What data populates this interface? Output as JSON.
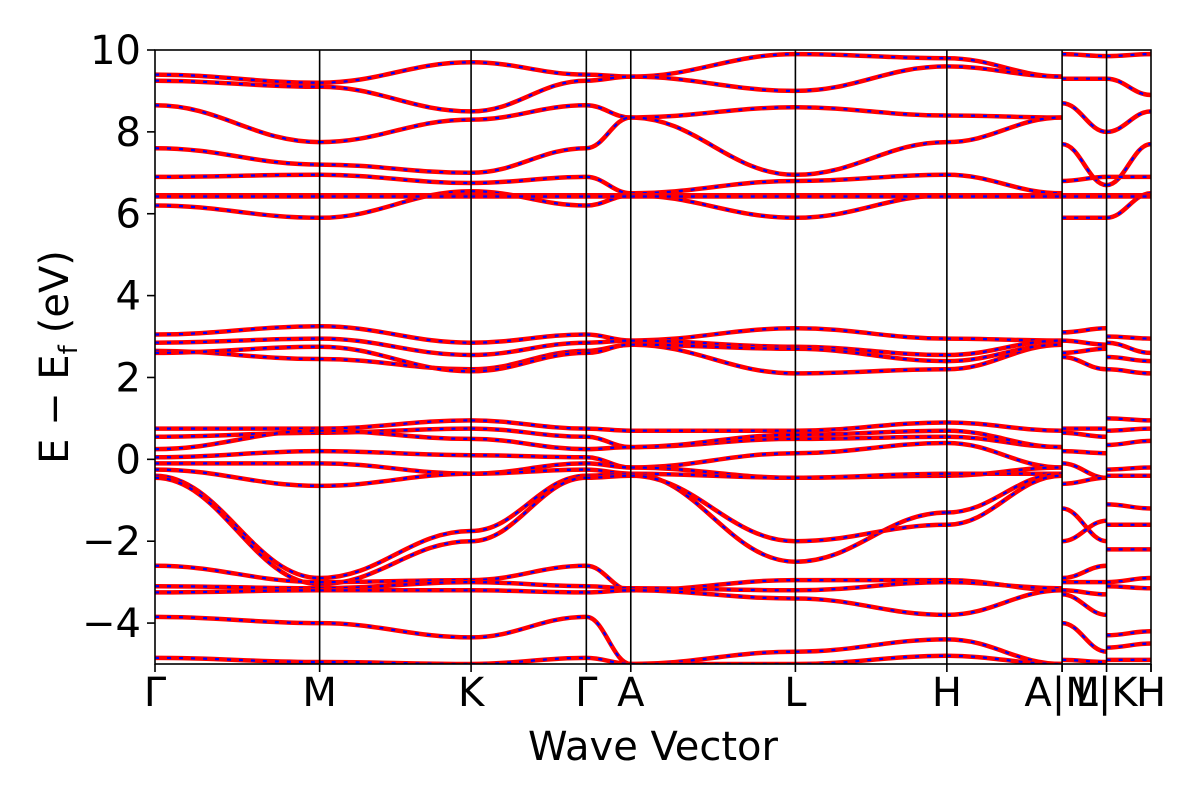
{
  "chart_data": {
    "type": "line",
    "xlabel": "Wave Vector",
    "ylabel": "E − E",
    "ylabel_subscript": "f",
    "ylabel_unit": "(eV)",
    "ylim": [
      -5,
      10
    ],
    "yticks": [
      -4,
      -2,
      0,
      2,
      4,
      6,
      8,
      10
    ],
    "ytick_labels": [
      "−4",
      "−2",
      "0",
      "2",
      "4",
      "6",
      "8",
      "10"
    ],
    "grid": false,
    "band_colors": {
      "solid": "#ff0000",
      "dashed": "#0000ff"
    },
    "kpoints": [
      {
        "label": "Γ",
        "pos": 0.0
      },
      {
        "label": "M",
        "pos": 1.0
      },
      {
        "label": "K",
        "pos": 1.92
      },
      {
        "label": "Γ",
        "pos": 2.62
      },
      {
        "label": "A",
        "pos": 2.89
      },
      {
        "label": "L",
        "pos": 3.89
      },
      {
        "label": "H",
        "pos": 4.81
      },
      {
        "label": "A",
        "pos": 5.51
      },
      {
        "label": "M",
        "pos": 5.51
      },
      {
        "label": "L",
        "pos": 5.78
      },
      {
        "label": "K",
        "pos": 6.05
      },
      {
        "label": "H",
        "pos": 6.05
      }
    ],
    "xtick_display": [
      {
        "text": "Γ",
        "pos": 0.0
      },
      {
        "text": "M",
        "pos": 1.0
      },
      {
        "text": "K",
        "pos": 1.92
      },
      {
        "text": "Γ",
        "pos": 2.62
      },
      {
        "text": "A",
        "pos": 2.89
      },
      {
        "text": "L",
        "pos": 3.89
      },
      {
        "text": "H",
        "pos": 4.81
      },
      {
        "text": "A|M",
        "pos": 5.51
      },
      {
        "text": "L|K",
        "pos": 5.78
      },
      {
        "text": "H",
        "pos": 6.05
      }
    ],
    "vlines": [
      1.0,
      1.92,
      2.62,
      2.89,
      3.89,
      4.81,
      5.51,
      5.78
    ],
    "segments": [
      {
        "x0": 0.0,
        "x1": 1.0,
        "from": "Γ",
        "to": "M",
        "bands": [
          [
            9.4,
            9.2
          ],
          [
            9.25,
            9.1
          ],
          [
            8.65,
            7.75
          ],
          [
            7.6,
            7.2
          ],
          [
            6.9,
            6.95
          ],
          [
            6.2,
            5.9
          ],
          [
            6.45,
            6.45
          ],
          [
            6.42,
            6.42
          ],
          [
            3.05,
            3.25
          ],
          [
            2.85,
            2.95
          ],
          [
            2.65,
            2.45
          ],
          [
            2.6,
            2.75
          ],
          [
            0.75,
            0.75
          ],
          [
            0.55,
            0.65
          ],
          [
            0.25,
            0.7
          ],
          [
            0.05,
            0.2
          ],
          [
            -0.1,
            -0.1
          ],
          [
            -0.25,
            -0.65
          ],
          [
            -0.4,
            -2.9
          ],
          [
            -0.45,
            -3.05
          ],
          [
            -2.6,
            -3.0
          ],
          [
            -3.1,
            -3.15
          ],
          [
            -3.25,
            -3.2
          ],
          [
            -3.85,
            -4.0
          ],
          [
            -4.85,
            -4.95
          ]
        ]
      },
      {
        "x0": 1.0,
        "x1": 1.92,
        "from": "M",
        "to": "K",
        "bands": [
          [
            9.2,
            9.7
          ],
          [
            9.1,
            8.5
          ],
          [
            7.75,
            8.3
          ],
          [
            7.2,
            7.0
          ],
          [
            6.95,
            6.75
          ],
          [
            5.9,
            6.55
          ],
          [
            6.45,
            6.45
          ],
          [
            6.42,
            6.42
          ],
          [
            3.25,
            2.85
          ],
          [
            2.95,
            2.55
          ],
          [
            2.45,
            2.2
          ],
          [
            2.75,
            2.15
          ],
          [
            0.75,
            0.95
          ],
          [
            0.65,
            0.75
          ],
          [
            0.7,
            0.5
          ],
          [
            0.2,
            0.1
          ],
          [
            -0.1,
            -0.35
          ],
          [
            -0.65,
            -0.35
          ],
          [
            -2.9,
            -1.75
          ],
          [
            -3.05,
            -2.0
          ],
          [
            -3.0,
            -2.95
          ],
          [
            -3.15,
            -3.0
          ],
          [
            -3.2,
            -3.2
          ],
          [
            -4.0,
            -4.35
          ],
          [
            -4.95,
            -5.0
          ]
        ]
      },
      {
        "x0": 1.92,
        "x1": 2.62,
        "from": "K",
        "to": "Γ",
        "bands": [
          [
            9.7,
            9.4
          ],
          [
            8.5,
            9.25
          ],
          [
            8.3,
            8.65
          ],
          [
            7.0,
            7.6
          ],
          [
            6.75,
            6.9
          ],
          [
            6.55,
            6.2
          ],
          [
            6.45,
            6.45
          ],
          [
            6.42,
            6.42
          ],
          [
            2.85,
            3.05
          ],
          [
            2.55,
            2.85
          ],
          [
            2.2,
            2.65
          ],
          [
            2.15,
            2.6
          ],
          [
            0.95,
            0.75
          ],
          [
            0.75,
            0.55
          ],
          [
            0.5,
            0.25
          ],
          [
            0.1,
            0.05
          ],
          [
            -0.35,
            -0.1
          ],
          [
            -0.35,
            -0.25
          ],
          [
            -1.75,
            -0.4
          ],
          [
            -2.0,
            -0.45
          ],
          [
            -2.95,
            -2.6
          ],
          [
            -3.0,
            -3.1
          ],
          [
            -3.2,
            -3.25
          ],
          [
            -4.35,
            -3.85
          ],
          [
            -5.0,
            -4.85
          ]
        ]
      },
      {
        "x0": 2.62,
        "x1": 2.89,
        "from": "Γ",
        "to": "A",
        "bands": [
          [
            9.4,
            9.35
          ],
          [
            9.25,
            9.35
          ],
          [
            8.65,
            8.35
          ],
          [
            7.6,
            8.35
          ],
          [
            6.9,
            6.5
          ],
          [
            6.2,
            6.45
          ],
          [
            6.45,
            6.45
          ],
          [
            6.42,
            6.42
          ],
          [
            3.05,
            2.9
          ],
          [
            2.85,
            2.9
          ],
          [
            2.65,
            2.8
          ],
          [
            2.6,
            2.8
          ],
          [
            0.75,
            0.7
          ],
          [
            0.55,
            0.3
          ],
          [
            0.25,
            0.3
          ],
          [
            0.05,
            -0.2
          ],
          [
            -0.1,
            -0.2
          ],
          [
            -0.25,
            -0.35
          ],
          [
            -0.4,
            -0.35
          ],
          [
            -0.45,
            -0.4
          ],
          [
            -2.6,
            -3.2
          ],
          [
            -3.1,
            -3.15
          ],
          [
            -3.25,
            -3.2
          ],
          [
            -3.85,
            -5.0
          ],
          [
            -4.85,
            -5.0
          ]
        ]
      },
      {
        "x0": 2.89,
        "x1": 3.89,
        "from": "A",
        "to": "L",
        "bands": [
          [
            9.35,
            9.9
          ],
          [
            9.35,
            9.0
          ],
          [
            8.35,
            8.6
          ],
          [
            8.35,
            6.95
          ],
          [
            6.5,
            6.8
          ],
          [
            6.45,
            5.9
          ],
          [
            6.45,
            6.45
          ],
          [
            6.42,
            6.42
          ],
          [
            2.9,
            3.2
          ],
          [
            2.9,
            2.75
          ],
          [
            2.8,
            2.1
          ],
          [
            2.8,
            2.7
          ],
          [
            0.7,
            0.7
          ],
          [
            0.3,
            0.5
          ],
          [
            0.3,
            0.6
          ],
          [
            -0.2,
            0.15
          ],
          [
            -0.2,
            -0.45
          ],
          [
            -0.35,
            -0.45
          ],
          [
            -0.35,
            -2.5
          ],
          [
            -0.4,
            -2.0
          ],
          [
            -3.2,
            -2.95
          ],
          [
            -3.15,
            -3.2
          ],
          [
            -3.2,
            -3.4
          ],
          [
            -5.0,
            -4.7
          ],
          [
            -5.0,
            -5.0
          ]
        ]
      },
      {
        "x0": 3.89,
        "x1": 4.81,
        "from": "L",
        "to": "H",
        "bands": [
          [
            9.9,
            9.8
          ],
          [
            9.0,
            9.6
          ],
          [
            8.6,
            8.4
          ],
          [
            6.95,
            7.75
          ],
          [
            6.8,
            6.95
          ],
          [
            5.9,
            6.45
          ],
          [
            6.45,
            6.45
          ],
          [
            6.42,
            6.42
          ],
          [
            3.2,
            2.95
          ],
          [
            2.75,
            2.55
          ],
          [
            2.1,
            2.2
          ],
          [
            2.7,
            2.4
          ],
          [
            0.7,
            0.9
          ],
          [
            0.5,
            0.55
          ],
          [
            0.6,
            0.7
          ],
          [
            0.15,
            0.4
          ],
          [
            -0.45,
            -0.4
          ],
          [
            -0.45,
            -0.35
          ],
          [
            -2.5,
            -1.3
          ],
          [
            -2.0,
            -1.6
          ],
          [
            -2.95,
            -2.95
          ],
          [
            -3.2,
            -3.0
          ],
          [
            -3.4,
            -3.8
          ],
          [
            -4.7,
            -4.4
          ],
          [
            -5.0,
            -4.8
          ]
        ]
      },
      {
        "x0": 4.81,
        "x1": 5.51,
        "from": "H",
        "to": "A",
        "bands": [
          [
            9.8,
            9.35
          ],
          [
            9.6,
            9.35
          ],
          [
            8.4,
            8.35
          ],
          [
            7.75,
            8.35
          ],
          [
            6.95,
            6.5
          ],
          [
            6.45,
            6.45
          ],
          [
            6.45,
            6.45
          ],
          [
            6.42,
            6.42
          ],
          [
            2.95,
            2.9
          ],
          [
            2.55,
            2.9
          ],
          [
            2.2,
            2.8
          ],
          [
            2.4,
            2.8
          ],
          [
            0.9,
            0.7
          ],
          [
            0.55,
            0.3
          ],
          [
            0.7,
            0.3
          ],
          [
            0.4,
            -0.2
          ],
          [
            -0.4,
            -0.2
          ],
          [
            -0.35,
            -0.35
          ],
          [
            -1.3,
            -0.35
          ],
          [
            -1.6,
            -0.4
          ],
          [
            -2.95,
            -3.2
          ],
          [
            -3.0,
            -3.15
          ],
          [
            -3.8,
            -3.2
          ],
          [
            -4.4,
            -5.0
          ],
          [
            -4.8,
            -5.0
          ]
        ]
      },
      {
        "x0": 5.51,
        "x1": 5.78,
        "from": "M",
        "to": "L",
        "bands": [
          [
            9.9,
            9.85
          ],
          [
            9.3,
            9.3
          ],
          [
            8.7,
            8.0
          ],
          [
            7.7,
            6.7
          ],
          [
            6.8,
            6.9
          ],
          [
            5.9,
            5.9
          ],
          [
            6.45,
            6.45
          ],
          [
            6.42,
            6.42
          ],
          [
            3.1,
            3.2
          ],
          [
            2.9,
            2.8
          ],
          [
            2.6,
            2.7
          ],
          [
            2.5,
            2.2
          ],
          [
            0.75,
            0.75
          ],
          [
            0.65,
            0.55
          ],
          [
            0.2,
            0.15
          ],
          [
            -0.1,
            -0.45
          ],
          [
            -0.6,
            -0.45
          ],
          [
            -1.2,
            -2.0
          ],
          [
            -2.0,
            -1.5
          ],
          [
            -2.9,
            -2.6
          ],
          [
            -3.0,
            -3.0
          ],
          [
            -3.2,
            -3.3
          ],
          [
            -3.3,
            -3.8
          ],
          [
            -4.0,
            -4.7
          ],
          [
            -4.9,
            -4.95
          ]
        ]
      },
      {
        "x0": 5.78,
        "x1": 6.05,
        "from": "K",
        "to": "H",
        "bands": [
          [
            9.85,
            9.9
          ],
          [
            9.3,
            8.9
          ],
          [
            8.0,
            8.5
          ],
          [
            6.7,
            7.7
          ],
          [
            6.9,
            6.9
          ],
          [
            5.9,
            6.5
          ],
          [
            6.45,
            6.45
          ],
          [
            6.42,
            6.42
          ],
          [
            3.0,
            2.95
          ],
          [
            2.85,
            2.6
          ],
          [
            2.5,
            2.4
          ],
          [
            2.2,
            2.1
          ],
          [
            1.0,
            0.95
          ],
          [
            0.7,
            0.75
          ],
          [
            0.35,
            0.45
          ],
          [
            -0.25,
            -0.2
          ],
          [
            -0.4,
            -0.4
          ],
          [
            -1.1,
            -1.2
          ],
          [
            -1.6,
            -1.6
          ],
          [
            -2.2,
            -2.2
          ],
          [
            -3.0,
            -2.9
          ],
          [
            -3.1,
            -3.15
          ],
          [
            -4.3,
            -4.2
          ],
          [
            -4.6,
            -4.5
          ],
          [
            -4.9,
            -4.9
          ]
        ]
      }
    ]
  }
}
